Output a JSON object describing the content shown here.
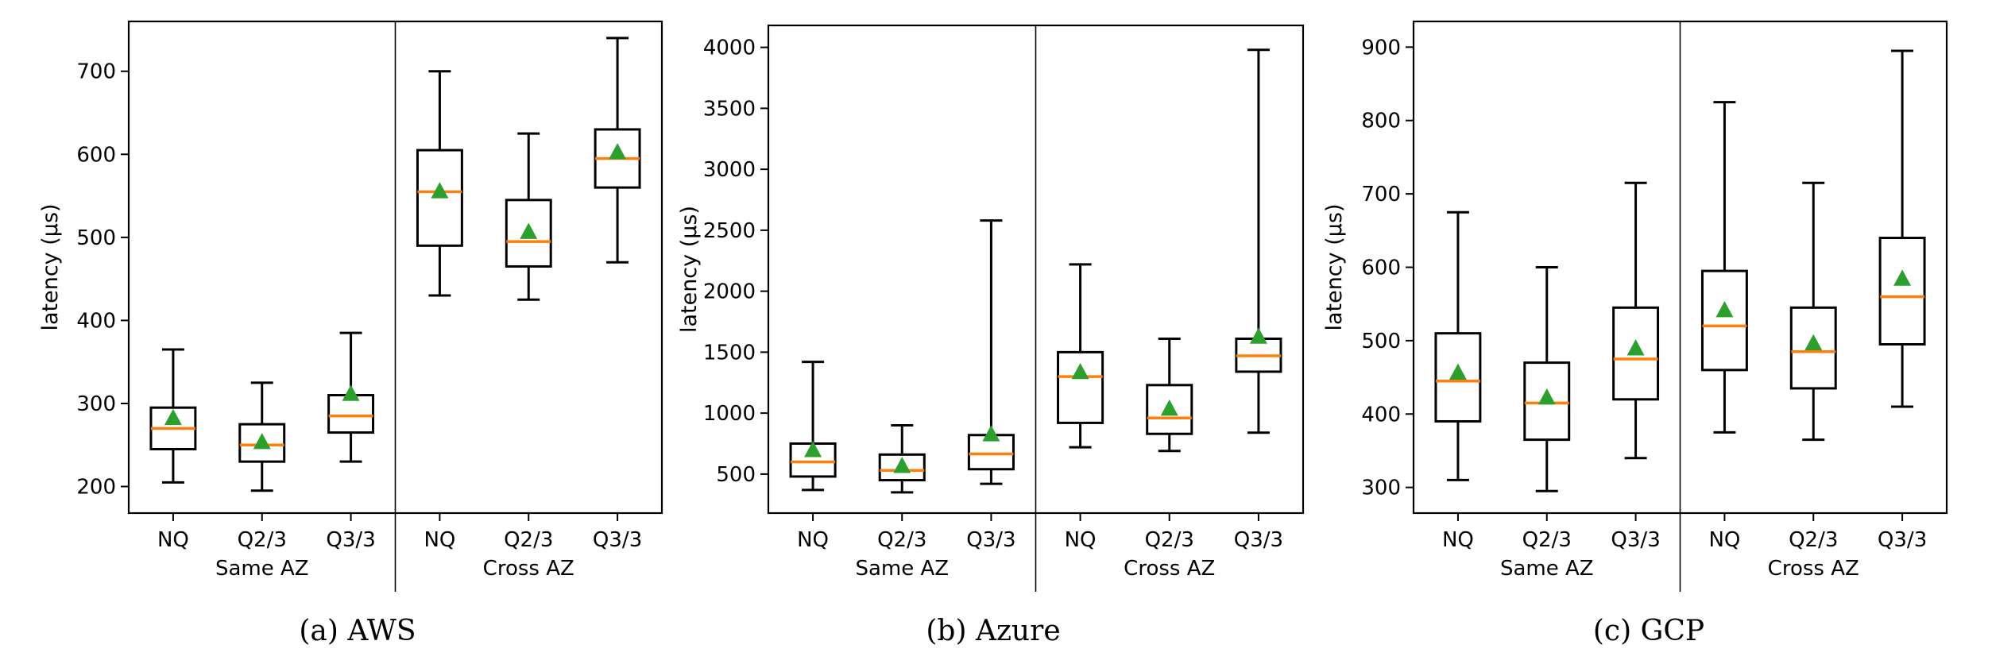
{
  "colors": {
    "median": "#ff7f0e",
    "mean_marker": "#2ca02c",
    "box": "#000000"
  },
  "chart_data": [
    {
      "type": "box",
      "caption": "(a) AWS",
      "ylabel": "latency (µs)",
      "ylim": [
        168,
        760
      ],
      "yticks": [
        200,
        300,
        400,
        500,
        600,
        700
      ],
      "group_labels": [
        "Same AZ",
        "Cross AZ"
      ],
      "categories": [
        "NQ",
        "Q2/3",
        "Q3/3",
        "NQ",
        "Q2/3",
        "Q3/3"
      ],
      "boxes": [
        {
          "whislo": 205,
          "q1": 245,
          "med": 270,
          "q3": 295,
          "whishi": 365,
          "mean": 283
        },
        {
          "whislo": 195,
          "q1": 230,
          "med": 250,
          "q3": 275,
          "whishi": 325,
          "mean": 254
        },
        {
          "whislo": 230,
          "q1": 265,
          "med": 285,
          "q3": 310,
          "whishi": 385,
          "mean": 312
        },
        {
          "whislo": 430,
          "q1": 490,
          "med": 555,
          "q3": 605,
          "whishi": 700,
          "mean": 556
        },
        {
          "whislo": 425,
          "q1": 465,
          "med": 495,
          "q3": 545,
          "whishi": 625,
          "mean": 507
        },
        {
          "whislo": 470,
          "q1": 560,
          "med": 595,
          "q3": 630,
          "whishi": 740,
          "mean": 603
        }
      ]
    },
    {
      "type": "box",
      "caption": "(b) Azure",
      "ylabel": "latency (µs)",
      "ylim": [
        180,
        4180
      ],
      "yticks": [
        500,
        1000,
        1500,
        2000,
        2500,
        3000,
        3500,
        4000
      ],
      "group_labels": [
        "Same AZ",
        "Cross AZ"
      ],
      "categories": [
        "NQ",
        "Q2/3",
        "Q3/3",
        "NQ",
        "Q2/3",
        "Q3/3"
      ],
      "boxes": [
        {
          "whislo": 370,
          "q1": 480,
          "med": 600,
          "q3": 750,
          "whishi": 1420,
          "mean": 700
        },
        {
          "whislo": 350,
          "q1": 450,
          "med": 530,
          "q3": 660,
          "whishi": 900,
          "mean": 570
        },
        {
          "whislo": 420,
          "q1": 540,
          "med": 665,
          "q3": 820,
          "whishi": 2580,
          "mean": 830
        },
        {
          "whislo": 720,
          "q1": 920,
          "med": 1300,
          "q3": 1500,
          "whishi": 2220,
          "mean": 1340
        },
        {
          "whislo": 690,
          "q1": 830,
          "med": 960,
          "q3": 1230,
          "whishi": 1610,
          "mean": 1040
        },
        {
          "whislo": 840,
          "q1": 1340,
          "med": 1470,
          "q3": 1610,
          "whishi": 3980,
          "mean": 1630
        }
      ]
    },
    {
      "type": "box",
      "caption": "(c) GCP",
      "ylabel": "latency (µs)",
      "ylim": [
        265,
        935
      ],
      "yticks": [
        300,
        400,
        500,
        600,
        700,
        800,
        900
      ],
      "group_labels": [
        "Same AZ",
        "Cross AZ"
      ],
      "categories": [
        "NQ",
        "Q2/3",
        "Q3/3",
        "NQ",
        "Q2/3",
        "Q3/3"
      ],
      "boxes": [
        {
          "whislo": 310,
          "q1": 390,
          "med": 445,
          "q3": 510,
          "whishi": 675,
          "mean": 457
        },
        {
          "whislo": 295,
          "q1": 365,
          "med": 415,
          "q3": 470,
          "whishi": 600,
          "mean": 423
        },
        {
          "whislo": 340,
          "q1": 420,
          "med": 475,
          "q3": 545,
          "whishi": 715,
          "mean": 490
        },
        {
          "whislo": 375,
          "q1": 460,
          "med": 520,
          "q3": 595,
          "whishi": 825,
          "mean": 542
        },
        {
          "whislo": 365,
          "q1": 435,
          "med": 485,
          "q3": 545,
          "whishi": 715,
          "mean": 497
        },
        {
          "whislo": 410,
          "q1": 495,
          "med": 560,
          "q3": 640,
          "whishi": 895,
          "mean": 585
        }
      ]
    }
  ]
}
